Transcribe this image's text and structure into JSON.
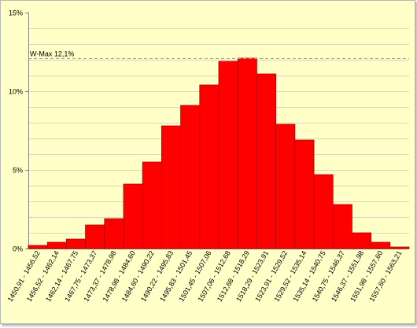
{
  "chart_data": {
    "type": "bar",
    "title": "",
    "xlabel": "",
    "ylabel": "",
    "ylim": [
      0,
      15
    ],
    "yticks": [
      {
        "value": 0,
        "label": "0%"
      },
      {
        "value": 5,
        "label": "5%"
      },
      {
        "value": 10,
        "label": "10%"
      },
      {
        "value": 15,
        "label": "15%"
      }
    ],
    "minor_grid_step": 1,
    "grid": true,
    "bar_color": "#ff0000",
    "bar_border_color": "#b00000",
    "background_color": "#ffffc8",
    "annotation": {
      "label": "W-Max 12,1%",
      "value": 12.1
    },
    "categories": [
      "1450,91 - 1456,52",
      "1456,52 - 1462,14",
      "1462,14 - 1467,75",
      "1467,75 - 1473,37",
      "1473,37 - 1478,98",
      "1478,98 - 1484,60",
      "1484,60 - 1490,22",
      "1490,22 - 1495,83",
      "1495,83 - 1501,45",
      "1501,45 - 1507,06",
      "1507,06 - 1512,68",
      "1512,68 - 1518,29",
      "1518,29 - 1523,91",
      "1523,91 - 1529,52",
      "1529,52 - 1535,14",
      "1535,14 - 1540,75",
      "1540,75 - 1546,37",
      "1546,37 - 1551,98",
      "1551,98 - 1557,60",
      "1557,60 - 1563,21"
    ],
    "values": [
      0.2,
      0.4,
      0.6,
      1.5,
      1.9,
      4.1,
      5.5,
      7.8,
      9.1,
      10.4,
      11.9,
      12.1,
      11.1,
      7.9,
      6.9,
      4.7,
      2.8,
      1.0,
      0.4,
      0.1
    ]
  }
}
